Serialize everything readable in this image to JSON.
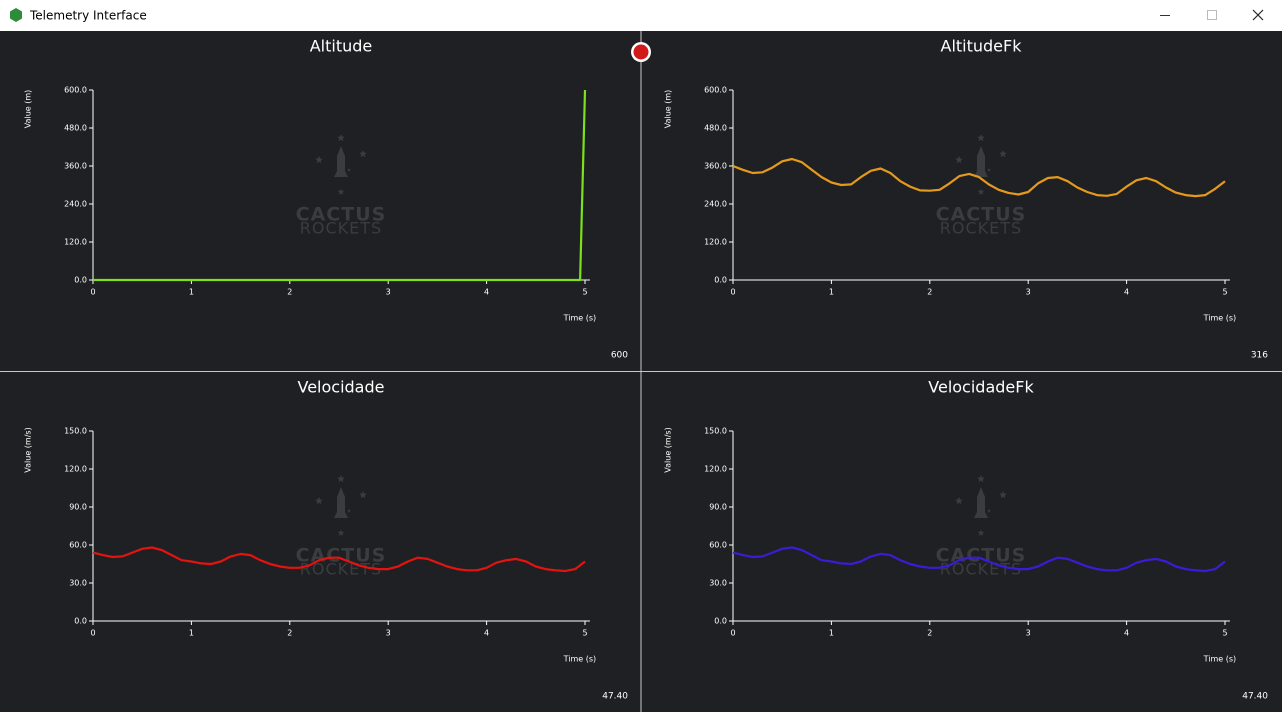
{
  "window_title": "Telemetry Interface",
  "watermark": [
    "CACTUS",
    "ROCKETS"
  ],
  "chart_data": [
    {
      "type": "line",
      "title": "Altitude",
      "xlabel": "Time (s)",
      "ylabel": "Value (m)",
      "x": [
        0,
        0.5,
        1,
        1.5,
        2,
        2.5,
        3,
        3.5,
        4,
        4.5,
        4.95,
        5.0
      ],
      "series": [
        {
          "color": "#7ee01a",
          "values": [
            0,
            0,
            0,
            0,
            0,
            0,
            0,
            0,
            0,
            0,
            0,
            600
          ]
        }
      ],
      "xlim": [
        0,
        5.05
      ],
      "ylim": [
        0,
        600
      ],
      "xticks": [
        0,
        1,
        2,
        3,
        4,
        5
      ],
      "yticks": [
        {
          "value": 0,
          "label": "0.0"
        },
        {
          "value": 120,
          "label": "120.0"
        },
        {
          "value": 240,
          "label": "240.0"
        },
        {
          "value": 360,
          "label": "360.0"
        },
        {
          "value": 480,
          "label": "480.0"
        },
        {
          "value": 600,
          "label": "600.0"
        }
      ],
      "readout": 600
    },
    {
      "type": "line",
      "title": "AltitudeFk",
      "xlabel": "Time (s)",
      "ylabel": "Value (m)",
      "x": [
        0,
        0.1,
        0.2,
        0.3,
        0.4,
        0.5,
        0.6,
        0.7,
        0.8,
        0.9,
        1.0,
        1.1,
        1.2,
        1.3,
        1.4,
        1.5,
        1.6,
        1.7,
        1.8,
        1.9,
        2.0,
        2.1,
        2.2,
        2.3,
        2.4,
        2.5,
        2.6,
        2.7,
        2.8,
        2.9,
        3.0,
        3.1,
        3.2,
        3.3,
        3.4,
        3.5,
        3.6,
        3.7,
        3.8,
        3.9,
        4.0,
        4.1,
        4.2,
        4.3,
        4.4,
        4.5,
        4.6,
        4.7,
        4.8,
        4.9,
        5.0
      ],
      "series": [
        {
          "color": "#e69a1c",
          "values": [
            360,
            348,
            338,
            340,
            355,
            375,
            382,
            372,
            348,
            325,
            308,
            300,
            302,
            325,
            345,
            352,
            338,
            312,
            295,
            283,
            282,
            285,
            305,
            328,
            335,
            325,
            302,
            285,
            275,
            270,
            278,
            305,
            322,
            325,
            312,
            292,
            278,
            268,
            266,
            272,
            295,
            315,
            322,
            312,
            292,
            276,
            268,
            265,
            268,
            288,
            312
          ]
        }
      ],
      "xlim": [
        0,
        5.05
      ],
      "ylim": [
        0,
        600
      ],
      "xticks": [
        0,
        1,
        2,
        3,
        4,
        5
      ],
      "yticks": [
        {
          "value": 0,
          "label": "0.0"
        },
        {
          "value": 120,
          "label": "120.0"
        },
        {
          "value": 240,
          "label": "240.0"
        },
        {
          "value": 360,
          "label": "360.0"
        },
        {
          "value": 480,
          "label": "480.0"
        },
        {
          "value": 600,
          "label": "600.0"
        }
      ],
      "readout": 316
    },
    {
      "type": "line",
      "title": "Velocidade",
      "xlabel": "Time (s)",
      "ylabel": "Value (m/s)",
      "x": [
        0,
        0.1,
        0.2,
        0.3,
        0.4,
        0.5,
        0.6,
        0.7,
        0.8,
        0.9,
        1.0,
        1.1,
        1.2,
        1.3,
        1.4,
        1.5,
        1.6,
        1.7,
        1.8,
        1.9,
        2.0,
        2.1,
        2.2,
        2.3,
        2.4,
        2.5,
        2.6,
        2.7,
        2.8,
        2.9,
        3.0,
        3.1,
        3.2,
        3.3,
        3.4,
        3.5,
        3.6,
        3.7,
        3.8,
        3.9,
        4.0,
        4.1,
        4.2,
        4.3,
        4.4,
        4.5,
        4.6,
        4.7,
        4.8,
        4.9,
        5.0
      ],
      "series": [
        {
          "color": "#e3140f",
          "values": [
            54,
            52,
            50.5,
            51,
            54,
            57,
            58,
            56,
            52,
            48,
            47,
            45.5,
            45,
            47,
            51,
            53,
            52,
            48,
            45,
            43,
            42,
            42,
            44,
            48,
            50,
            50,
            47,
            44,
            42,
            41,
            41,
            43,
            47,
            50,
            49,
            46,
            43,
            41,
            40,
            40,
            42,
            46,
            48,
            49,
            47,
            43,
            41,
            40,
            39.5,
            41,
            47
          ]
        }
      ],
      "xlim": [
        0,
        5.05
      ],
      "ylim": [
        0,
        150
      ],
      "xticks": [
        0,
        1,
        2,
        3,
        4,
        5
      ],
      "yticks": [
        {
          "value": 0,
          "label": "0.0"
        },
        {
          "value": 30,
          "label": "30.0"
        },
        {
          "value": 60,
          "label": "60.0"
        },
        {
          "value": 90,
          "label": "90.0"
        },
        {
          "value": 120,
          "label": "120.0"
        },
        {
          "value": 150,
          "label": "150.0"
        }
      ],
      "readout": {
        "value": 47.4,
        "label": "47.40"
      }
    },
    {
      "type": "line",
      "title": "VelocidadeFk",
      "xlabel": "Time (s)",
      "ylabel": "Value (m/s)",
      "x": [
        0,
        0.1,
        0.2,
        0.3,
        0.4,
        0.5,
        0.6,
        0.7,
        0.8,
        0.9,
        1.0,
        1.1,
        1.2,
        1.3,
        1.4,
        1.5,
        1.6,
        1.7,
        1.8,
        1.9,
        2.0,
        2.1,
        2.2,
        2.3,
        2.4,
        2.5,
        2.6,
        2.7,
        2.8,
        2.9,
        3.0,
        3.1,
        3.2,
        3.3,
        3.4,
        3.5,
        3.6,
        3.7,
        3.8,
        3.9,
        4.0,
        4.1,
        4.2,
        4.3,
        4.4,
        4.5,
        4.6,
        4.7,
        4.8,
        4.9,
        5.0
      ],
      "series": [
        {
          "color": "#3d1bd6",
          "values": [
            54,
            52,
            50.5,
            51,
            54,
            57,
            58,
            56,
            52,
            48,
            47,
            45.5,
            45,
            47,
            51,
            53,
            52,
            48,
            45,
            43,
            42,
            42,
            44,
            48,
            50,
            50,
            47,
            44,
            42,
            41,
            41,
            43,
            47,
            50,
            49,
            46,
            43,
            41,
            40,
            40,
            42,
            46,
            48,
            49,
            47,
            43,
            41,
            40,
            39.5,
            41,
            47
          ]
        }
      ],
      "xlim": [
        0,
        5.05
      ],
      "ylim": [
        0,
        150
      ],
      "xticks": [
        0,
        1,
        2,
        3,
        4,
        5
      ],
      "yticks": [
        {
          "value": 0,
          "label": "0.0"
        },
        {
          "value": 30,
          "label": "30.0"
        },
        {
          "value": 60,
          "label": "60.0"
        },
        {
          "value": 90,
          "label": "90.0"
        },
        {
          "value": 120,
          "label": "120.0"
        },
        {
          "value": 150,
          "label": "150.0"
        }
      ],
      "readout": {
        "value": 47.4,
        "label": "47.40"
      }
    }
  ]
}
